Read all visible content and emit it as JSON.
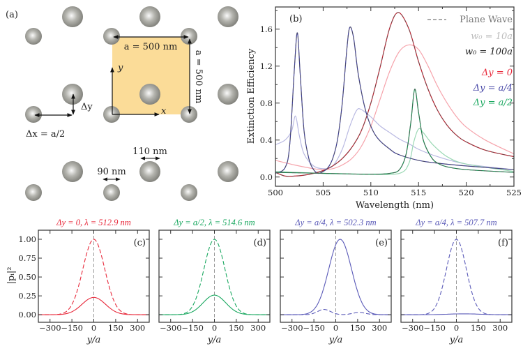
{
  "schematic": {
    "panel_label": "(a)",
    "lattice_label": "a = 500 nm",
    "lattice_label_vertical": "a = 500 nm",
    "axis_x": "x",
    "axis_y": "y",
    "delta_y": "Δy",
    "delta_x": "Δx = a/2",
    "large_diameter": "110 nm",
    "small_diameter": "90 nm",
    "cell_color": "#fbdc98"
  },
  "chart_data": [
    {
      "id": "b",
      "type": "line",
      "panel_label": "(b)",
      "xlabel": "Wavelength (nm)",
      "ylabel": "Extinction Efficiency",
      "xlim": [
        500,
        525
      ],
      "ylim": [
        -0.1,
        1.84
      ],
      "xticks": [
        500,
        505,
        510,
        515,
        520,
        525
      ],
      "yticks": [
        0.0,
        0.4,
        0.8,
        1.2,
        1.6
      ],
      "ytick_labels": [
        "0.0",
        "0.4",
        "0.8",
        "1.2",
        "1.6"
      ],
      "legend": [
        {
          "label": "Plane Wave",
          "color": "#777777",
          "style": "dashed"
        },
        {
          "label": "w₀ = 10a",
          "color": "#bbbbbb"
        },
        {
          "label": "w₀ = 100a",
          "color": "#222222"
        },
        {
          "label": "Δy = 0",
          "color": "#e8283a"
        },
        {
          "label": "Δy = a/4",
          "color": "#4a4aa8"
        },
        {
          "label": "Δy = a/2",
          "color": "#1aa860"
        }
      ],
      "series": [
        {
          "name": "Δy=0, w0=10a",
          "color": "#f6a3ab",
          "plane_wave_overlay": false,
          "x": [
            500,
            502,
            504,
            505,
            506,
            507,
            508,
            509,
            510,
            511,
            512,
            513,
            514,
            515,
            516,
            517,
            518,
            519,
            520,
            522,
            525
          ],
          "y": [
            0.18,
            0.13,
            0.09,
            0.08,
            0.09,
            0.13,
            0.2,
            0.33,
            0.55,
            0.85,
            1.15,
            1.36,
            1.43,
            1.38,
            1.2,
            0.98,
            0.8,
            0.65,
            0.54,
            0.4,
            0.25
          ]
        },
        {
          "name": "Δy=a/4, w0=10a",
          "color": "#b9b9e2",
          "plane_wave_overlay": false,
          "x": [
            500,
            501,
            501.7,
            502.1,
            502.5,
            503,
            504,
            505,
            506,
            507,
            507.8,
            508.5,
            509,
            510,
            511,
            512,
            513,
            514,
            515,
            517,
            520,
            525
          ],
          "y": [
            0.35,
            0.4,
            0.5,
            0.66,
            0.45,
            0.25,
            0.12,
            0.09,
            0.12,
            0.3,
            0.55,
            0.72,
            0.73,
            0.65,
            0.55,
            0.48,
            0.41,
            0.36,
            0.3,
            0.22,
            0.14,
            0.08
          ]
        },
        {
          "name": "Δy=a/2, w0=10a",
          "color": "#9ad8b4",
          "plane_wave_overlay": false,
          "x": [
            500,
            505,
            510,
            513,
            514,
            514.5,
            515,
            515.5,
            516.5,
            518,
            520,
            525
          ],
          "y": [
            0.06,
            0.04,
            0.03,
            0.04,
            0.15,
            0.38,
            0.52,
            0.48,
            0.35,
            0.22,
            0.14,
            0.06
          ]
        },
        {
          "name": "Δy=0, w0=100a",
          "color": "#c0202e",
          "plane_wave_overlay": true,
          "x": [
            500,
            501,
            502,
            503,
            504,
            505,
            506,
            507,
            508,
            509,
            510,
            511,
            512,
            512.9,
            514,
            515,
            516,
            517,
            518,
            519,
            520,
            522,
            525
          ],
          "y": [
            0.05,
            0.01,
            0.01,
            0.02,
            0.04,
            0.07,
            0.12,
            0.2,
            0.32,
            0.5,
            0.8,
            1.2,
            1.62,
            1.78,
            1.6,
            1.25,
            0.95,
            0.72,
            0.56,
            0.45,
            0.38,
            0.29,
            0.22
          ]
        },
        {
          "name": "Δy=a/4, w0=100a",
          "color": "#3c3c96",
          "plane_wave_overlay": true,
          "x": [
            500,
            501,
            501.5,
            502,
            502.3,
            502.6,
            503,
            503.5,
            504,
            504.5,
            505,
            505.5,
            506,
            506.5,
            507,
            507.5,
            507.8,
            508.2,
            508.7,
            509.5,
            510.5,
            512,
            513,
            515,
            517,
            520,
            525
          ],
          "y": [
            0.04,
            0.1,
            0.35,
            1.2,
            1.56,
            1.1,
            0.5,
            0.2,
            0.08,
            0.04,
            0.06,
            0.1,
            0.2,
            0.4,
            0.8,
            1.4,
            1.62,
            1.5,
            1.1,
            0.7,
            0.45,
            0.3,
            0.24,
            0.18,
            0.15,
            0.12,
            0.08
          ]
        },
        {
          "name": "Δy=a/2, w0=100a",
          "color": "#148a4c",
          "plane_wave_overlay": true,
          "x": [
            500,
            505,
            510,
            512,
            513,
            513.7,
            514.2,
            514.6,
            515,
            515.5,
            516.3,
            517,
            518,
            520,
            525
          ],
          "y": [
            0.05,
            0.04,
            0.03,
            0.04,
            0.08,
            0.25,
            0.6,
            0.95,
            0.7,
            0.4,
            0.22,
            0.15,
            0.11,
            0.08,
            0.05
          ]
        }
      ]
    },
    {
      "id": "c",
      "type": "line",
      "panel_label": "(c)",
      "title": "Δy = 0, λ = 512.9 nm",
      "color": "#e8283a",
      "xlabel": "y/a",
      "ylabel": "|pᵢ|²",
      "xlim": [
        -380,
        380
      ],
      "ylim": [
        -0.1,
        1.12
      ],
      "xticks": [
        -300,
        -150,
        0,
        150,
        300
      ],
      "xtick_labels": [
        "−300",
        "−150",
        "0",
        "150",
        "300"
      ],
      "yticks": [
        0,
        0.25,
        0.5,
        0.75,
        1.0
      ],
      "ytick_labels": [
        "0.00",
        "0.25",
        "0.50",
        "0.75",
        "1.00"
      ],
      "series": [
        {
          "name": "dashed",
          "style": "dashed",
          "gaussians": [
            {
              "amp": 1.0,
              "center": 0,
              "sigma": 75
            }
          ]
        },
        {
          "name": "solid",
          "style": "solid",
          "gaussians": [
            {
              "amp": 0.23,
              "center": 0,
              "sigma": 80
            }
          ]
        }
      ]
    },
    {
      "id": "d",
      "type": "line",
      "panel_label": "(d)",
      "title": "Δy = a/2, λ = 514.6 nm",
      "color": "#1aa860",
      "xlabel": "y/a",
      "xlim": [
        -380,
        380
      ],
      "ylim": [
        -0.1,
        1.12
      ],
      "xticks": [
        -300,
        -150,
        0,
        150,
        300
      ],
      "xtick_labels": [
        "−300",
        "−150",
        "0",
        "150",
        "300"
      ],
      "series": [
        {
          "name": "dashed",
          "style": "dashed",
          "gaussians": [
            {
              "amp": 1.0,
              "center": 0,
              "sigma": 72
            }
          ]
        },
        {
          "name": "solid",
          "style": "solid",
          "gaussians": [
            {
              "amp": 0.26,
              "center": 0,
              "sigma": 78
            }
          ]
        }
      ]
    },
    {
      "id": "e",
      "type": "line",
      "panel_label": "(e)",
      "title": "Δy = a/4, λ = 502.3 nm",
      "color": "#5a5ab8",
      "xlabel": "y/a",
      "xlim": [
        -380,
        380
      ],
      "ylim": [
        -0.1,
        1.12
      ],
      "xticks": [
        -300,
        -150,
        0,
        150,
        300
      ],
      "xtick_labels": [
        "−300",
        "−150",
        "0",
        "150",
        "300"
      ],
      "series": [
        {
          "name": "solid",
          "style": "solid",
          "gaussians": [
            {
              "amp": 1.0,
              "center": 30,
              "sigma": 78
            }
          ]
        },
        {
          "name": "dashed",
          "style": "dashed",
          "gaussians": [
            {
              "amp": 0.07,
              "center": -80,
              "sigma": 45
            },
            {
              "amp": 0.03,
              "center": 160,
              "sigma": 45
            }
          ]
        }
      ]
    },
    {
      "id": "f",
      "type": "line",
      "panel_label": "(f)",
      "title": "Δy = a/4, λ = 507.7 nm",
      "color": "#5a5ab8",
      "xlabel": "y/a",
      "xlim": [
        -380,
        380
      ],
      "ylim": [
        -0.1,
        1.12
      ],
      "xticks": [
        -300,
        -150,
        0,
        150,
        300
      ],
      "xtick_labels": [
        "−300",
        "−150",
        "0",
        "150",
        "300"
      ],
      "series": [
        {
          "name": "dashed",
          "style": "dashed",
          "gaussians": [
            {
              "amp": 1.0,
              "center": 0,
              "sigma": 68
            }
          ]
        },
        {
          "name": "solid",
          "style": "solid",
          "gaussians": [
            {
              "amp": 0.012,
              "center": 50,
              "sigma": 110
            }
          ]
        }
      ]
    }
  ]
}
